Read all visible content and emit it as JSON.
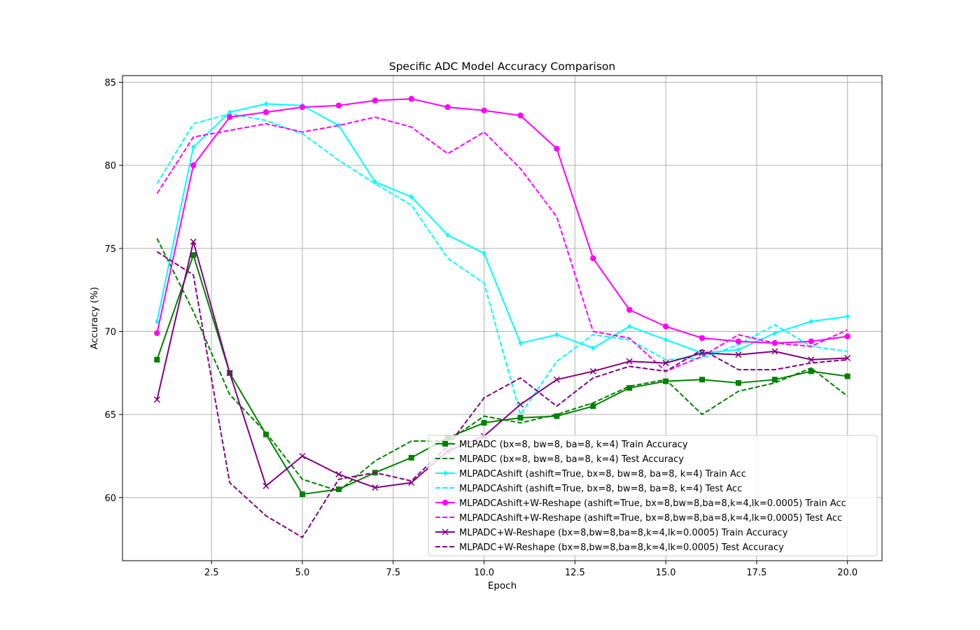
{
  "chart_data": {
    "type": "line",
    "title": "Specific ADC Model Accuracy Comparison",
    "xlabel": "Epoch",
    "ylabel": "Accuracy (%)",
    "xlim": [
      0.05,
      20.95
    ],
    "ylim": [
      56.2,
      85.4
    ],
    "xticks": [
      2.5,
      5.0,
      7.5,
      10.0,
      12.5,
      15.0,
      17.5,
      20.0
    ],
    "xtick_labels": [
      "2.5",
      "5.0",
      "7.5",
      "10.0",
      "12.5",
      "15.0",
      "17.5",
      "20.0"
    ],
    "yticks": [
      60,
      65,
      70,
      75,
      80,
      85
    ],
    "ytick_labels": [
      "60",
      "65",
      "70",
      "75",
      "80",
      "85"
    ],
    "grid": true,
    "legend_position": "lower-right",
    "x": [
      1,
      2,
      3,
      4,
      5,
      6,
      7,
      8,
      9,
      10,
      11,
      12,
      13,
      14,
      15,
      16,
      17,
      18,
      19,
      20
    ],
    "series": [
      {
        "name": "MLPADC (bx=8, bw=8, ba=8, k=4) Train Accuracy",
        "color": "#008000",
        "dash": "solid",
        "marker": "square",
        "values": [
          68.3,
          74.6,
          67.5,
          63.8,
          60.2,
          60.5,
          61.5,
          62.4,
          63.6,
          64.5,
          64.8,
          64.9,
          65.5,
          66.6,
          67.0,
          67.1,
          66.9,
          67.1,
          67.6,
          67.3
        ]
      },
      {
        "name": "MLPADC (bx=8, bw=8, ba=8, k=4) Test Accuracy",
        "color": "#008000",
        "dash": "dashed",
        "marker": "none",
        "values": [
          75.6,
          71.2,
          66.2,
          63.9,
          61.1,
          60.4,
          62.2,
          63.4,
          63.4,
          64.9,
          64.5,
          65.0,
          65.7,
          66.7,
          67.1,
          65.0,
          66.4,
          66.9,
          67.8,
          66.1
        ]
      },
      {
        "name": "MLPADCAshift (ashift=True, bx=8, bw=8, ba=8, k=4) Train Acc",
        "color": "#00ffff",
        "dash": "solid",
        "marker": "diamond",
        "values": [
          70.6,
          81.1,
          83.2,
          83.7,
          83.6,
          82.4,
          79.0,
          78.1,
          75.8,
          74.7,
          69.3,
          69.8,
          69.0,
          70.3,
          69.5,
          68.7,
          68.9,
          69.9,
          70.6,
          70.9
        ]
      },
      {
        "name": "MLPADCAshift (ashift=True, bx=8, bw=8, ba=8, k=4) Test Acc",
        "color": "#00ffff",
        "dash": "dashed",
        "marker": "none",
        "values": [
          78.9,
          82.5,
          83.1,
          82.7,
          81.9,
          80.3,
          78.9,
          77.6,
          74.4,
          72.9,
          65.0,
          68.2,
          69.8,
          69.5,
          68.3,
          68.4,
          69.2,
          70.4,
          69.1,
          68.8
        ]
      },
      {
        "name": "MLPADCAshift+W-Reshape (ashift=True, bx=8,bw=8,ba=8,k=4,lk=0.0005) Train Acc",
        "color": "#ff00ff",
        "dash": "solid",
        "marker": "circle",
        "values": [
          69.9,
          80.0,
          82.9,
          83.2,
          83.5,
          83.6,
          83.9,
          84.0,
          83.5,
          83.3,
          83.0,
          81.0,
          74.4,
          71.3,
          70.3,
          69.6,
          69.4,
          69.3,
          69.4,
          69.7
        ]
      },
      {
        "name": "MLPADCAshift+W-Reshape (ashift=True, bx=8,bw=8,ba=8,k=4,lk=0.0005) Test Acc",
        "color": "#ff00ff",
        "dash": "dashed",
        "marker": "none",
        "values": [
          78.3,
          81.7,
          82.1,
          82.5,
          82.0,
          82.4,
          82.9,
          82.3,
          80.7,
          82.0,
          79.8,
          76.9,
          70.0,
          69.6,
          67.6,
          68.5,
          69.8,
          69.3,
          69.1,
          70.1
        ]
      },
      {
        "name": "MLPADC+W-Reshape (bx=8,bw=8,ba=8,k=4,lk=0.0005) Train Accuracy",
        "color": "#800080",
        "dash": "solid",
        "marker": "x",
        "values": [
          65.9,
          75.4,
          67.5,
          60.7,
          62.5,
          61.4,
          60.6,
          60.9,
          62.8,
          63.7,
          65.6,
          67.1,
          67.6,
          68.2,
          68.1,
          68.7,
          68.6,
          68.8,
          68.3,
          68.4
        ]
      },
      {
        "name": "MLPADC+W-Reshape (bx=8,bw=8,ba=8,k=4,lk=0.0005) Test Accuracy",
        "color": "#800080",
        "dash": "dashed",
        "marker": "none",
        "values": [
          74.8,
          73.4,
          60.9,
          58.9,
          57.6,
          61.1,
          61.5,
          61.0,
          63.1,
          66.0,
          67.2,
          65.5,
          67.2,
          67.9,
          67.6,
          68.9,
          67.7,
          67.7,
          68.1,
          68.3
        ]
      }
    ]
  }
}
